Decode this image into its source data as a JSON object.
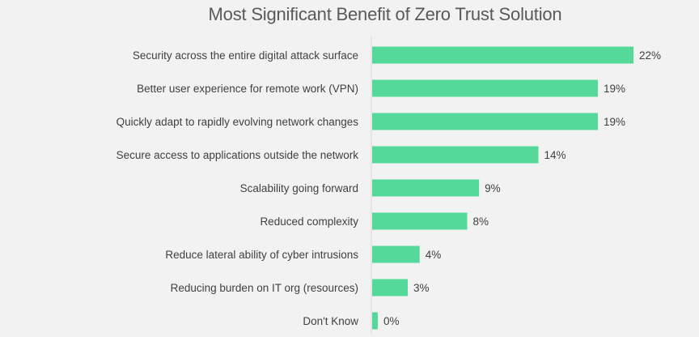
{
  "chart_data": {
    "type": "bar",
    "orientation": "horizontal",
    "title": "Most Significant Benefit of Zero Trust Solution",
    "categories": [
      "Security across the entire digital attack surface",
      "Better user experience for remote work (VPN)",
      "Quickly adapt to rapidly evolving network changes",
      "Secure access to applications outside the network",
      "Scalability going forward",
      "Reduced complexity",
      "Reduce lateral ability of cyber intrusions",
      "Reducing burden on IT org (resources)",
      "Don't Know"
    ],
    "values": [
      22,
      19,
      19,
      14,
      9,
      8,
      4,
      3,
      0
    ],
    "value_labels": [
      "22%",
      "19%",
      "19%",
      "14%",
      "9%",
      "8%",
      "4%",
      "3%",
      "0%"
    ],
    "unit": "%",
    "xlim": [
      0,
      22
    ],
    "xlabel": "",
    "ylabel": "",
    "grid": false,
    "bar_color": "#55d99a",
    "axis_color": "#d9d9d9"
  }
}
